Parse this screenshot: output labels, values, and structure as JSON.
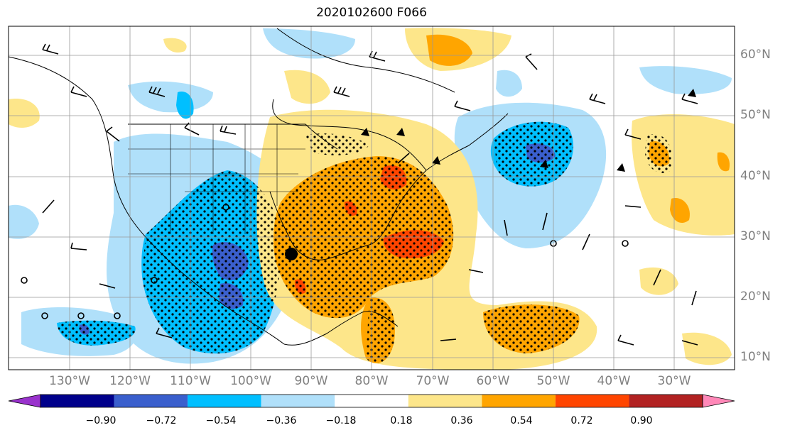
{
  "title": "2020102600 F066",
  "lat_labels": [
    "60°N",
    "50°N",
    "40°N",
    "30°N",
    "20°N",
    "10°N"
  ],
  "lon_labels": [
    "130°W",
    "120°W",
    "110°W",
    "100°W",
    "90°W",
    "80°W",
    "70°W",
    "60°W",
    "50°W",
    "40°W",
    "30°W"
  ],
  "colorbar": {
    "ticks": [
      "−0.90",
      "−0.72",
      "−0.54",
      "−0.36",
      "−0.18",
      "0.18",
      "0.36",
      "0.54",
      "0.72",
      "0.90"
    ],
    "colors": [
      "#9932cc",
      "#00008b",
      "#3a5fcd",
      "#00bfff",
      "#b0e0fa",
      "#ffffff",
      "#fde68a",
      "#ffa500",
      "#ff4500",
      "#b22222",
      "#ff88b8"
    ]
  }
}
